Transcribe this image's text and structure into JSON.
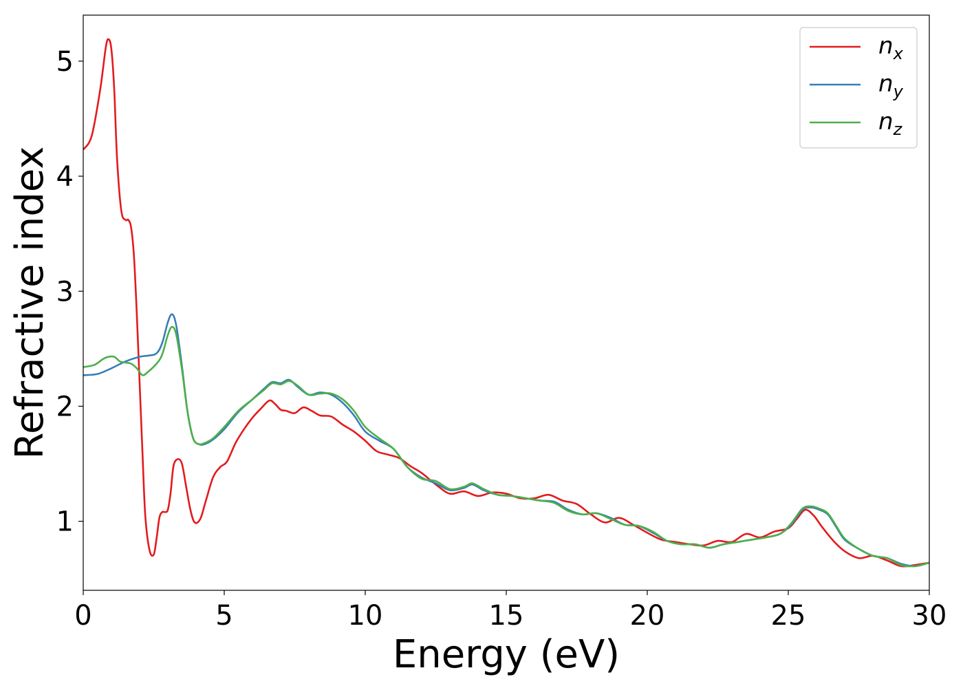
{
  "chart_data": {
    "type": "line",
    "xlabel": "Energy (eV)",
    "ylabel": "Refractive index",
    "xlim": [
      0,
      30
    ],
    "ylim": [
      0.4,
      5.4
    ],
    "x_ticks": [
      "0",
      "5",
      "10",
      "15",
      "20",
      "25",
      "30"
    ],
    "y_ticks": [
      "1",
      "2",
      "3",
      "4",
      "5"
    ],
    "grid": false,
    "legend_position": "top-right",
    "series": [
      {
        "name": "n",
        "subscript": "x",
        "color": "#e41a1c",
        "x": [
          0,
          0.3,
          0.6,
          0.8,
          0.9,
          1.0,
          1.1,
          1.2,
          1.35,
          1.5,
          1.6,
          1.7,
          1.8,
          1.9,
          2.0,
          2.1,
          2.2,
          2.35,
          2.5,
          2.6,
          2.7,
          2.8,
          2.9,
          3.0,
          3.1,
          3.2,
          3.35,
          3.5,
          3.65,
          3.8,
          3.95,
          4.15,
          4.35,
          4.6,
          4.85,
          5.1,
          5.4,
          5.7,
          6.0,
          6.3,
          6.6,
          6.8,
          7.0,
          7.2,
          7.5,
          7.8,
          8.1,
          8.4,
          8.8,
          9.2,
          9.6,
          10.0,
          10.4,
          10.8,
          11.2,
          11.6,
          12.0,
          12.5,
          13.0,
          13.5,
          14.0,
          14.5,
          15.0,
          15.5,
          16.0,
          16.5,
          17.0,
          17.5,
          18.0,
          18.5,
          19.0,
          19.5,
          20.0,
          20.5,
          21.0,
          21.5,
          22.0,
          22.5,
          23.0,
          23.5,
          24.0,
          24.5,
          25.0,
          25.3,
          25.6,
          25.9,
          26.2,
          26.6,
          27.0,
          27.5,
          28.0,
          28.5,
          29.0,
          29.5,
          30.0
        ],
        "y": [
          4.23,
          4.35,
          4.75,
          5.12,
          5.19,
          5.1,
          4.75,
          4.15,
          3.7,
          3.62,
          3.62,
          3.55,
          3.3,
          2.8,
          2.2,
          1.6,
          1.05,
          0.75,
          0.71,
          0.85,
          1.03,
          1.08,
          1.08,
          1.1,
          1.25,
          1.48,
          1.54,
          1.5,
          1.3,
          1.1,
          0.99,
          1.02,
          1.18,
          1.38,
          1.47,
          1.52,
          1.68,
          1.8,
          1.9,
          1.98,
          2.05,
          2.02,
          1.97,
          1.96,
          1.94,
          1.99,
          1.96,
          1.92,
          1.91,
          1.84,
          1.78,
          1.7,
          1.61,
          1.58,
          1.55,
          1.48,
          1.42,
          1.32,
          1.24,
          1.26,
          1.22,
          1.25,
          1.24,
          1.2,
          1.2,
          1.23,
          1.18,
          1.15,
          1.06,
          0.99,
          1.03,
          0.97,
          0.9,
          0.84,
          0.82,
          0.8,
          0.79,
          0.83,
          0.82,
          0.89,
          0.86,
          0.91,
          0.94,
          1.02,
          1.1,
          1.05,
          0.95,
          0.83,
          0.74,
          0.68,
          0.7,
          0.66,
          0.61,
          0.62,
          0.64
        ]
      },
      {
        "name": "n",
        "subscript": "y",
        "color": "#377eb8",
        "x": [
          0,
          0.5,
          1.0,
          1.5,
          2.0,
          2.3,
          2.6,
          2.8,
          3.0,
          3.15,
          3.3,
          3.5,
          3.7,
          3.9,
          4.1,
          4.3,
          4.6,
          5.0,
          5.5,
          6.0,
          6.4,
          6.7,
          7.0,
          7.3,
          7.6,
          8.0,
          8.4,
          8.8,
          9.2,
          9.6,
          10.0,
          10.5,
          11.0,
          11.5,
          12.0,
          12.5,
          13.0,
          13.5,
          13.8,
          14.2,
          14.7,
          15.2,
          15.7,
          16.2,
          16.7,
          17.2,
          17.7,
          18.2,
          18.7,
          19.2,
          19.7,
          20.2,
          20.7,
          21.2,
          21.7,
          22.2,
          22.7,
          23.2,
          23.7,
          24.2,
          24.7,
          25.1,
          25.5,
          25.8,
          26.1,
          26.4,
          26.7,
          27.0,
          27.5,
          28.0,
          28.5,
          29.0,
          29.5,
          30.0
        ],
        "y": [
          2.27,
          2.28,
          2.33,
          2.39,
          2.43,
          2.44,
          2.46,
          2.55,
          2.73,
          2.8,
          2.7,
          2.35,
          1.95,
          1.72,
          1.67,
          1.67,
          1.71,
          1.8,
          1.95,
          2.06,
          2.15,
          2.21,
          2.2,
          2.23,
          2.17,
          2.1,
          2.12,
          2.1,
          2.03,
          1.92,
          1.78,
          1.7,
          1.63,
          1.47,
          1.38,
          1.33,
          1.27,
          1.29,
          1.32,
          1.27,
          1.23,
          1.22,
          1.2,
          1.18,
          1.17,
          1.1,
          1.06,
          1.07,
          1.03,
          0.97,
          0.96,
          0.9,
          0.83,
          0.8,
          0.8,
          0.77,
          0.8,
          0.82,
          0.84,
          0.86,
          0.89,
          0.97,
          1.1,
          1.12,
          1.1,
          1.06,
          0.95,
          0.84,
          0.76,
          0.7,
          0.68,
          0.63,
          0.61,
          0.64
        ]
      },
      {
        "name": "n",
        "subscript": "z",
        "color": "#4daf4a",
        "x": [
          0,
          0.4,
          0.7,
          0.9,
          1.1,
          1.3,
          1.5,
          1.7,
          1.9,
          2.1,
          2.3,
          2.6,
          2.8,
          3.0,
          3.15,
          3.3,
          3.5,
          3.7,
          3.9,
          4.1,
          4.3,
          4.6,
          5.0,
          5.5,
          6.0,
          6.4,
          6.7,
          7.0,
          7.3,
          7.6,
          8.0,
          8.4,
          8.8,
          9.2,
          9.6,
          10.0,
          10.5,
          11.0,
          11.5,
          12.0,
          12.5,
          13.0,
          13.5,
          13.8,
          14.2,
          14.7,
          15.2,
          15.7,
          16.2,
          16.7,
          17.2,
          17.7,
          18.2,
          18.7,
          19.2,
          19.7,
          20.2,
          20.7,
          21.2,
          21.7,
          22.2,
          22.7,
          23.2,
          23.7,
          24.2,
          24.7,
          25.1,
          25.5,
          25.8,
          26.1,
          26.4,
          26.7,
          27.0,
          27.5,
          28.0,
          28.5,
          29.0,
          29.5,
          30.0
        ],
        "y": [
          2.34,
          2.36,
          2.41,
          2.43,
          2.43,
          2.39,
          2.38,
          2.37,
          2.33,
          2.27,
          2.3,
          2.37,
          2.45,
          2.62,
          2.69,
          2.62,
          2.32,
          1.95,
          1.72,
          1.67,
          1.68,
          1.72,
          1.82,
          1.96,
          2.06,
          2.14,
          2.2,
          2.19,
          2.22,
          2.18,
          2.1,
          2.11,
          2.11,
          2.06,
          1.96,
          1.82,
          1.72,
          1.63,
          1.47,
          1.37,
          1.35,
          1.28,
          1.3,
          1.33,
          1.28,
          1.23,
          1.22,
          1.2,
          1.18,
          1.16,
          1.09,
          1.06,
          1.07,
          1.02,
          0.97,
          0.96,
          0.91,
          0.83,
          0.8,
          0.8,
          0.77,
          0.8,
          0.82,
          0.84,
          0.86,
          0.89,
          0.98,
          1.11,
          1.13,
          1.11,
          1.07,
          0.96,
          0.85,
          0.76,
          0.7,
          0.68,
          0.62,
          0.61,
          0.64
        ]
      }
    ]
  }
}
